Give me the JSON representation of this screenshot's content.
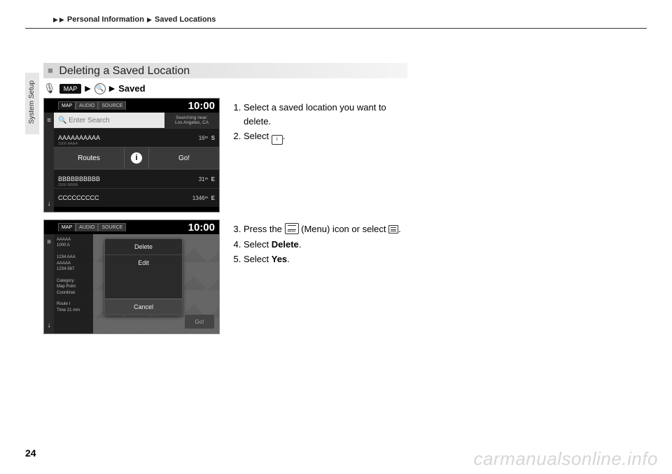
{
  "breadcrumb": {
    "item1": "Personal Information",
    "item2": "Saved Locations"
  },
  "side_tab": "System Setup",
  "section_title": "Deleting a Saved Location",
  "nav_path": {
    "map_btn": "MAP",
    "saved": "Saved"
  },
  "shot1": {
    "tabs": {
      "t1": "MAP",
      "t2": "AUDIO",
      "t3": "SOURCE"
    },
    "clock": "10:00",
    "search_placeholder": "🔍 Enter Search",
    "search_loc_line1": "Searching near:",
    "search_loc_line2": "Los Angeles, CA",
    "items": [
      {
        "name": "AAAAAAAAAA",
        "sub": "1000 AAAA",
        "dist": "16ᵐ",
        "dir": "S"
      },
      {
        "name": "BBBBBBBBBB",
        "sub": "2000 BBBB",
        "dist": "31ᵐ",
        "dir": "E"
      },
      {
        "name": "CCCCCCCCC",
        "sub": "",
        "dist": "1346ᵐ",
        "dir": "E"
      }
    ],
    "routes": "Routes",
    "go": "Go!"
  },
  "shot2": {
    "tabs": {
      "t1": "MAP",
      "t2": "AUDIO",
      "t3": "SOURCE"
    },
    "clock": "10:00",
    "side_info": "AAAAA\n1000 A\n\n1234 AAA\nAAAAA\n1234-567\n\nCategory:\nMap Point\nCoordinat\n\nRoute I\nTime 21 mm",
    "popup": {
      "delete": "Delete",
      "edit": "Edit",
      "cancel": "Cancel"
    },
    "go": "Go!"
  },
  "instructions1": {
    "s1a": "Select a saved location you want to delete.",
    "s2a": "Select ",
    "s2b": "."
  },
  "instructions2": {
    "s3a": "Press the ",
    "s3b": " (Menu) icon or select ",
    "s3c": ".",
    "s4a": "Select ",
    "s4b": "Delete",
    "s4c": ".",
    "s5a": "Select ",
    "s5b": "Yes",
    "s5c": "."
  },
  "page_number": "24",
  "watermark": "carmanualsonline.info"
}
